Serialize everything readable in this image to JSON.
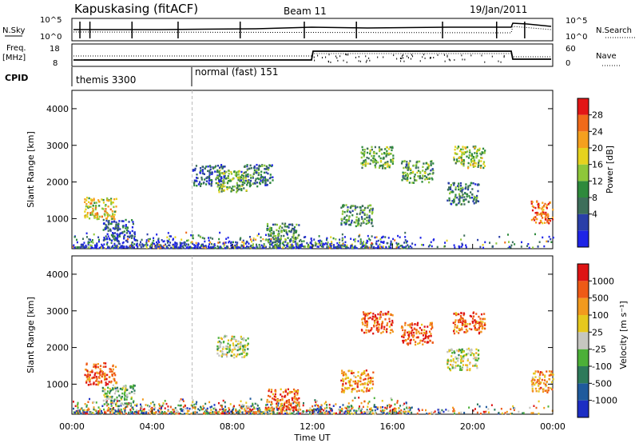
{
  "header": {
    "station": "Kapuskasing (fitACF)",
    "beam": "Beam 11",
    "date": "19/Jan/2011"
  },
  "top_strip": {
    "nsky_label": "N.Sky",
    "nsky_ticks": [
      "10^5",
      "10^0"
    ],
    "nsearch_label": "N.Search",
    "nsearch_ticks": [
      "10^5",
      "10^0"
    ],
    "freq_label_1": "Freq.",
    "freq_label_2": "[MHz]",
    "freq_ticks": [
      "18",
      "8"
    ],
    "nave_label": "Nave",
    "nave_ticks": [
      "60",
      "0"
    ],
    "cpid_label": "CPID",
    "cpid_entries": [
      {
        "label": "themis 3300",
        "start_hour": 0
      },
      {
        "label": "normal (fast) 151",
        "start_hour": 6
      }
    ]
  },
  "colors": {
    "power_scale": [
      "#1f24e6",
      "#2a3fa8",
      "#3d6e5a",
      "#2e8a3c",
      "#8ec73a",
      "#e6d21e",
      "#f5a01e",
      "#f06a1a",
      "#e21616"
    ],
    "velocity_scale": [
      "#1c2ec4",
      "#1f5a9c",
      "#2d7a5a",
      "#4cb038",
      "#c6c6c0",
      "#e6c81e",
      "#f29a1e",
      "#ee5a16",
      "#de1414"
    ]
  },
  "chart_data": [
    {
      "type": "heatmap",
      "title": "Power",
      "xlabel": "",
      "ylabel": "Slant Range [km]",
      "x_range": [
        "00:00",
        "00:00 (+24h)"
      ],
      "x_ticks": [
        "00:00",
        "04:00",
        "08:00",
        "12:00",
        "16:00",
        "20:00",
        "00:00"
      ],
      "y_range": [
        180,
        4500
      ],
      "y_ticks": [
        "1000",
        "2000",
        "3000",
        "4000"
      ],
      "colorbar_label": "Power [dB]",
      "colorbar_ticks": [
        "28",
        "24",
        "20",
        "16",
        "12",
        "8",
        "4"
      ],
      "regions": [
        {
          "hour": 1.4,
          "range_km": 1300,
          "level": 0.6
        },
        {
          "hour": 2.3,
          "range_km": 700,
          "level": 0.2
        },
        {
          "hour": 6.8,
          "range_km": 2200,
          "level": 0.25
        },
        {
          "hour": 8.0,
          "range_km": 2050,
          "level": 0.45
        },
        {
          "hour": 9.2,
          "range_km": 2200,
          "level": 0.3
        },
        {
          "hour": 10.5,
          "range_km": 600,
          "level": 0.35
        },
        {
          "hour": 14.2,
          "range_km": 1100,
          "level": 0.35
        },
        {
          "hour": 15.2,
          "range_km": 2700,
          "level": 0.45
        },
        {
          "hour": 17.2,
          "range_km": 2300,
          "level": 0.4
        },
        {
          "hour": 19.8,
          "range_km": 2700,
          "level": 0.5
        },
        {
          "hour": 19.5,
          "range_km": 1700,
          "level": 0.3
        },
        {
          "hour": 23.7,
          "range_km": 1200,
          "level": 0.85
        }
      ]
    },
    {
      "type": "heatmap",
      "title": "Velocity",
      "xlabel": "Time UT",
      "ylabel": "Slant Range [km]",
      "x_range": [
        "00:00",
        "00:00 (+24h)"
      ],
      "x_ticks": [
        "00:00",
        "04:00",
        "08:00",
        "12:00",
        "16:00",
        "20:00",
        "00:00"
      ],
      "y_range": [
        180,
        4500
      ],
      "y_ticks": [
        "1000",
        "2000",
        "3000",
        "4000"
      ],
      "colorbar_label": "Velocity [m s⁻¹]",
      "colorbar_ticks": [
        "1000",
        "500",
        "100",
        "25",
        "-25",
        "-100",
        "-500",
        "-1000"
      ],
      "regions": [
        {
          "hour": 1.4,
          "range_km": 1300,
          "level": 0.85
        },
        {
          "hour": 2.3,
          "range_km": 700,
          "level": 0.4
        },
        {
          "hour": 8.0,
          "range_km": 2050,
          "level": 0.5
        },
        {
          "hour": 10.5,
          "range_km": 600,
          "level": 0.8
        },
        {
          "hour": 14.2,
          "range_km": 1100,
          "level": 0.75
        },
        {
          "hour": 15.2,
          "range_km": 2700,
          "level": 0.85
        },
        {
          "hour": 17.2,
          "range_km": 2400,
          "level": 0.85
        },
        {
          "hour": 19.8,
          "range_km": 2700,
          "level": 0.8
        },
        {
          "hour": 19.5,
          "range_km": 1700,
          "level": 0.5
        },
        {
          "hour": 23.7,
          "range_km": 1100,
          "level": 0.7
        }
      ]
    }
  ]
}
